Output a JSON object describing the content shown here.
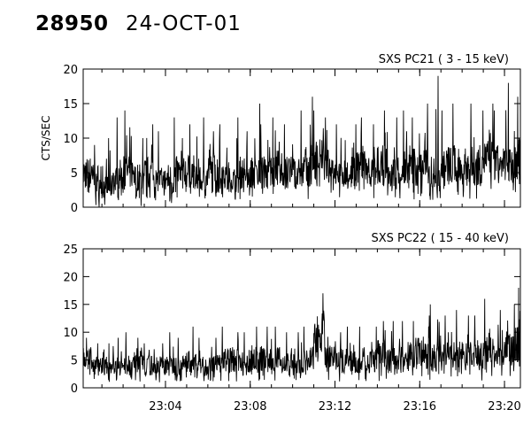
{
  "header": {
    "id_label": "28950",
    "date_label": "24-OCT-01"
  },
  "colors": {
    "background": "#ffffff",
    "ink": "#000000"
  },
  "chart_data": [
    {
      "type": "line",
      "title": "SXS PC21  (  3 - 15 keV)",
      "xlabel": "",
      "ylabel": "CTS/SEC",
      "ylim": [
        0,
        20
      ],
      "yticks": [
        0,
        5,
        10,
        15,
        20
      ],
      "xlim": [
        "23:00:07",
        "23:20:45"
      ],
      "xticks": [
        "23:04",
        "23:08",
        "23:12",
        "23:16",
        "23:20"
      ],
      "x_tick_labels_shown": false,
      "series": [
        {
          "x": [
            "23:00:07",
            "23:00:30",
            "23:01:00",
            "23:01:30",
            "23:02:00",
            "23:02:30",
            "23:03:00",
            "23:03:30",
            "23:04:00",
            "23:04:30",
            "23:05:00",
            "23:05:30",
            "23:06:00",
            "23:06:30",
            "23:07:00",
            "23:07:30",
            "23:08:00",
            "23:08:30",
            "23:09:00",
            "23:09:30",
            "23:10:00",
            "23:10:30",
            "23:11:00",
            "23:11:30",
            "23:12:00",
            "23:12:30",
            "23:13:00",
            "23:13:30",
            "23:14:00",
            "23:14:30",
            "23:15:00",
            "23:15:30",
            "23:16:00",
            "23:16:30",
            "23:17:00",
            "23:17:30",
            "23:18:00",
            "23:18:30",
            "23:19:00",
            "23:19:30",
            "23:20:00",
            "23:20:30",
            "23:20:45"
          ],
          "values": [
            5,
            4,
            3,
            4,
            5,
            4,
            5,
            4,
            4,
            5,
            5,
            4,
            5,
            5,
            4,
            5,
            5,
            5,
            6,
            5,
            5,
            6,
            7,
            6,
            5,
            5,
            6,
            5,
            6,
            5,
            5,
            6,
            6,
            5,
            6,
            6,
            6,
            6,
            7,
            6,
            6,
            7,
            7
          ],
          "lows": [
            1,
            0,
            0,
            1,
            1,
            0,
            1,
            1,
            0,
            1,
            1,
            1,
            0,
            1,
            1,
            1,
            1,
            1,
            1,
            1,
            1,
            1,
            2,
            2,
            1,
            1,
            1,
            1,
            1,
            1,
            1,
            1,
            1,
            1,
            1,
            1,
            1,
            1,
            2,
            1,
            1,
            2,
            2
          ],
          "highs": [
            8,
            9,
            10,
            13,
            14,
            10,
            12,
            11,
            13,
            10,
            12,
            13,
            11,
            12,
            13,
            11,
            15,
            12,
            13,
            12,
            14,
            16,
            14,
            13,
            12,
            12,
            13,
            12,
            14,
            13,
            14,
            13,
            15,
            19,
            14,
            15,
            15,
            14,
            15,
            14,
            18,
            16,
            18
          ]
        }
      ]
    },
    {
      "type": "line",
      "title": "SXS PC22  ( 15 - 40 keV)",
      "xlabel": "",
      "ylabel": "",
      "ylim": [
        0,
        25
      ],
      "yticks": [
        0,
        5,
        10,
        15,
        20,
        25
      ],
      "xlim": [
        "23:00:07",
        "23:20:45"
      ],
      "xticks": [
        "23:04",
        "23:08",
        "23:12",
        "23:16",
        "23:20"
      ],
      "x_tick_labels_shown": true,
      "series": [
        {
          "x": [
            "23:00:07",
            "23:00:30",
            "23:01:00",
            "23:01:30",
            "23:02:00",
            "23:02:30",
            "23:03:00",
            "23:03:30",
            "23:04:00",
            "23:04:30",
            "23:05:00",
            "23:05:30",
            "23:06:00",
            "23:06:30",
            "23:07:00",
            "23:07:30",
            "23:08:00",
            "23:08:30",
            "23:09:00",
            "23:09:30",
            "23:10:00",
            "23:10:30",
            "23:11:00",
            "23:11:30",
            "23:12:00",
            "23:12:30",
            "23:13:00",
            "23:13:30",
            "23:14:00",
            "23:14:30",
            "23:15:00",
            "23:15:30",
            "23:16:00",
            "23:16:30",
            "23:17:00",
            "23:17:30",
            "23:18:00",
            "23:18:30",
            "23:19:00",
            "23:19:30",
            "23:20:00",
            "23:20:30",
            "23:20:45"
          ],
          "values": [
            6,
            4,
            4,
            4,
            4,
            5,
            4,
            4,
            4,
            4,
            5,
            4,
            4,
            5,
            5,
            4,
            5,
            5,
            5,
            5,
            4,
            5,
            10,
            5,
            5,
            5,
            5,
            5,
            6,
            5,
            5,
            6,
            6,
            6,
            6,
            6,
            6,
            6,
            7,
            6,
            7,
            8,
            9
          ],
          "lows": [
            2,
            1,
            1,
            1,
            1,
            1,
            1,
            1,
            1,
            1,
            1,
            1,
            1,
            1,
            1,
            1,
            1,
            1,
            1,
            1,
            1,
            1,
            4,
            1,
            1,
            1,
            1,
            1,
            1,
            1,
            1,
            1,
            1,
            1,
            2,
            2,
            2,
            1,
            2,
            2,
            2,
            2,
            3
          ],
          "highs": [
            9,
            8,
            8,
            9,
            10,
            9,
            8,
            8,
            10,
            9,
            11,
            9,
            9,
            11,
            10,
            10,
            11,
            11,
            11,
            10,
            10,
            11,
            17,
            12,
            10,
            11,
            11,
            11,
            12,
            12,
            12,
            12,
            13,
            15,
            13,
            14,
            13,
            13,
            16,
            14,
            15,
            18,
            14
          ]
        }
      ]
    }
  ]
}
